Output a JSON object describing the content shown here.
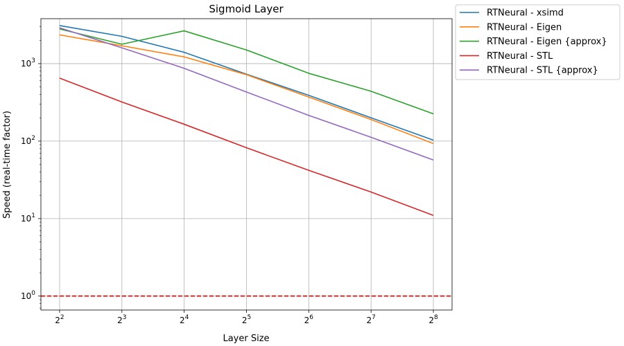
{
  "chart_data": {
    "type": "line",
    "title": "Sigmoid Layer",
    "xlabel": "Layer Size",
    "ylabel": "Speed (real-time factor)",
    "x_scale": "log2",
    "y_scale": "log10",
    "x": [
      4,
      8,
      16,
      32,
      64,
      128,
      256
    ],
    "x_tick_labels": [
      {
        "base": "2",
        "exp": "2"
      },
      {
        "base": "2",
        "exp": "3"
      },
      {
        "base": "2",
        "exp": "4"
      },
      {
        "base": "2",
        "exp": "5"
      },
      {
        "base": "2",
        "exp": "6"
      },
      {
        "base": "2",
        "exp": "7"
      },
      {
        "base": "2",
        "exp": "8"
      }
    ],
    "y_ticks": [
      1,
      10,
      100,
      1000
    ],
    "y_tick_labels": [
      {
        "base": "10",
        "exp": "0"
      },
      {
        "base": "10",
        "exp": "1"
      },
      {
        "base": "10",
        "exp": "2"
      },
      {
        "base": "10",
        "exp": "3"
      }
    ],
    "xlim_exp2": [
      1.7,
      8.3
    ],
    "ylim_log10": [
      -0.18,
      3.58
    ],
    "grid": true,
    "legend_position": "outside-top-right",
    "reference_line": {
      "y": 1,
      "color": "#ff0000",
      "style": "dashed"
    },
    "series": [
      {
        "name": "RTNeural - xsimd",
        "color": "#1f77b4",
        "values": [
          3100,
          2250,
          1400,
          730,
          390,
          200,
          103
        ]
      },
      {
        "name": "RTNeural - Eigen",
        "color": "#ff7f0e",
        "values": [
          2350,
          1700,
          1220,
          720,
          370,
          190,
          93
        ]
      },
      {
        "name": "RTNeural - Eigen {approx}",
        "color": "#2ca02c",
        "values": [
          2800,
          1780,
          2650,
          1500,
          750,
          440,
          225
        ]
      },
      {
        "name": "RTNeural - STL",
        "color": "#d62728",
        "values": [
          650,
          320,
          165,
          82,
          42,
          22,
          11
        ]
      },
      {
        "name": "RTNeural - STL {approx}",
        "color": "#9467bd",
        "values": [
          2900,
          1600,
          870,
          430,
          215,
          112,
          57
        ]
      }
    ]
  }
}
